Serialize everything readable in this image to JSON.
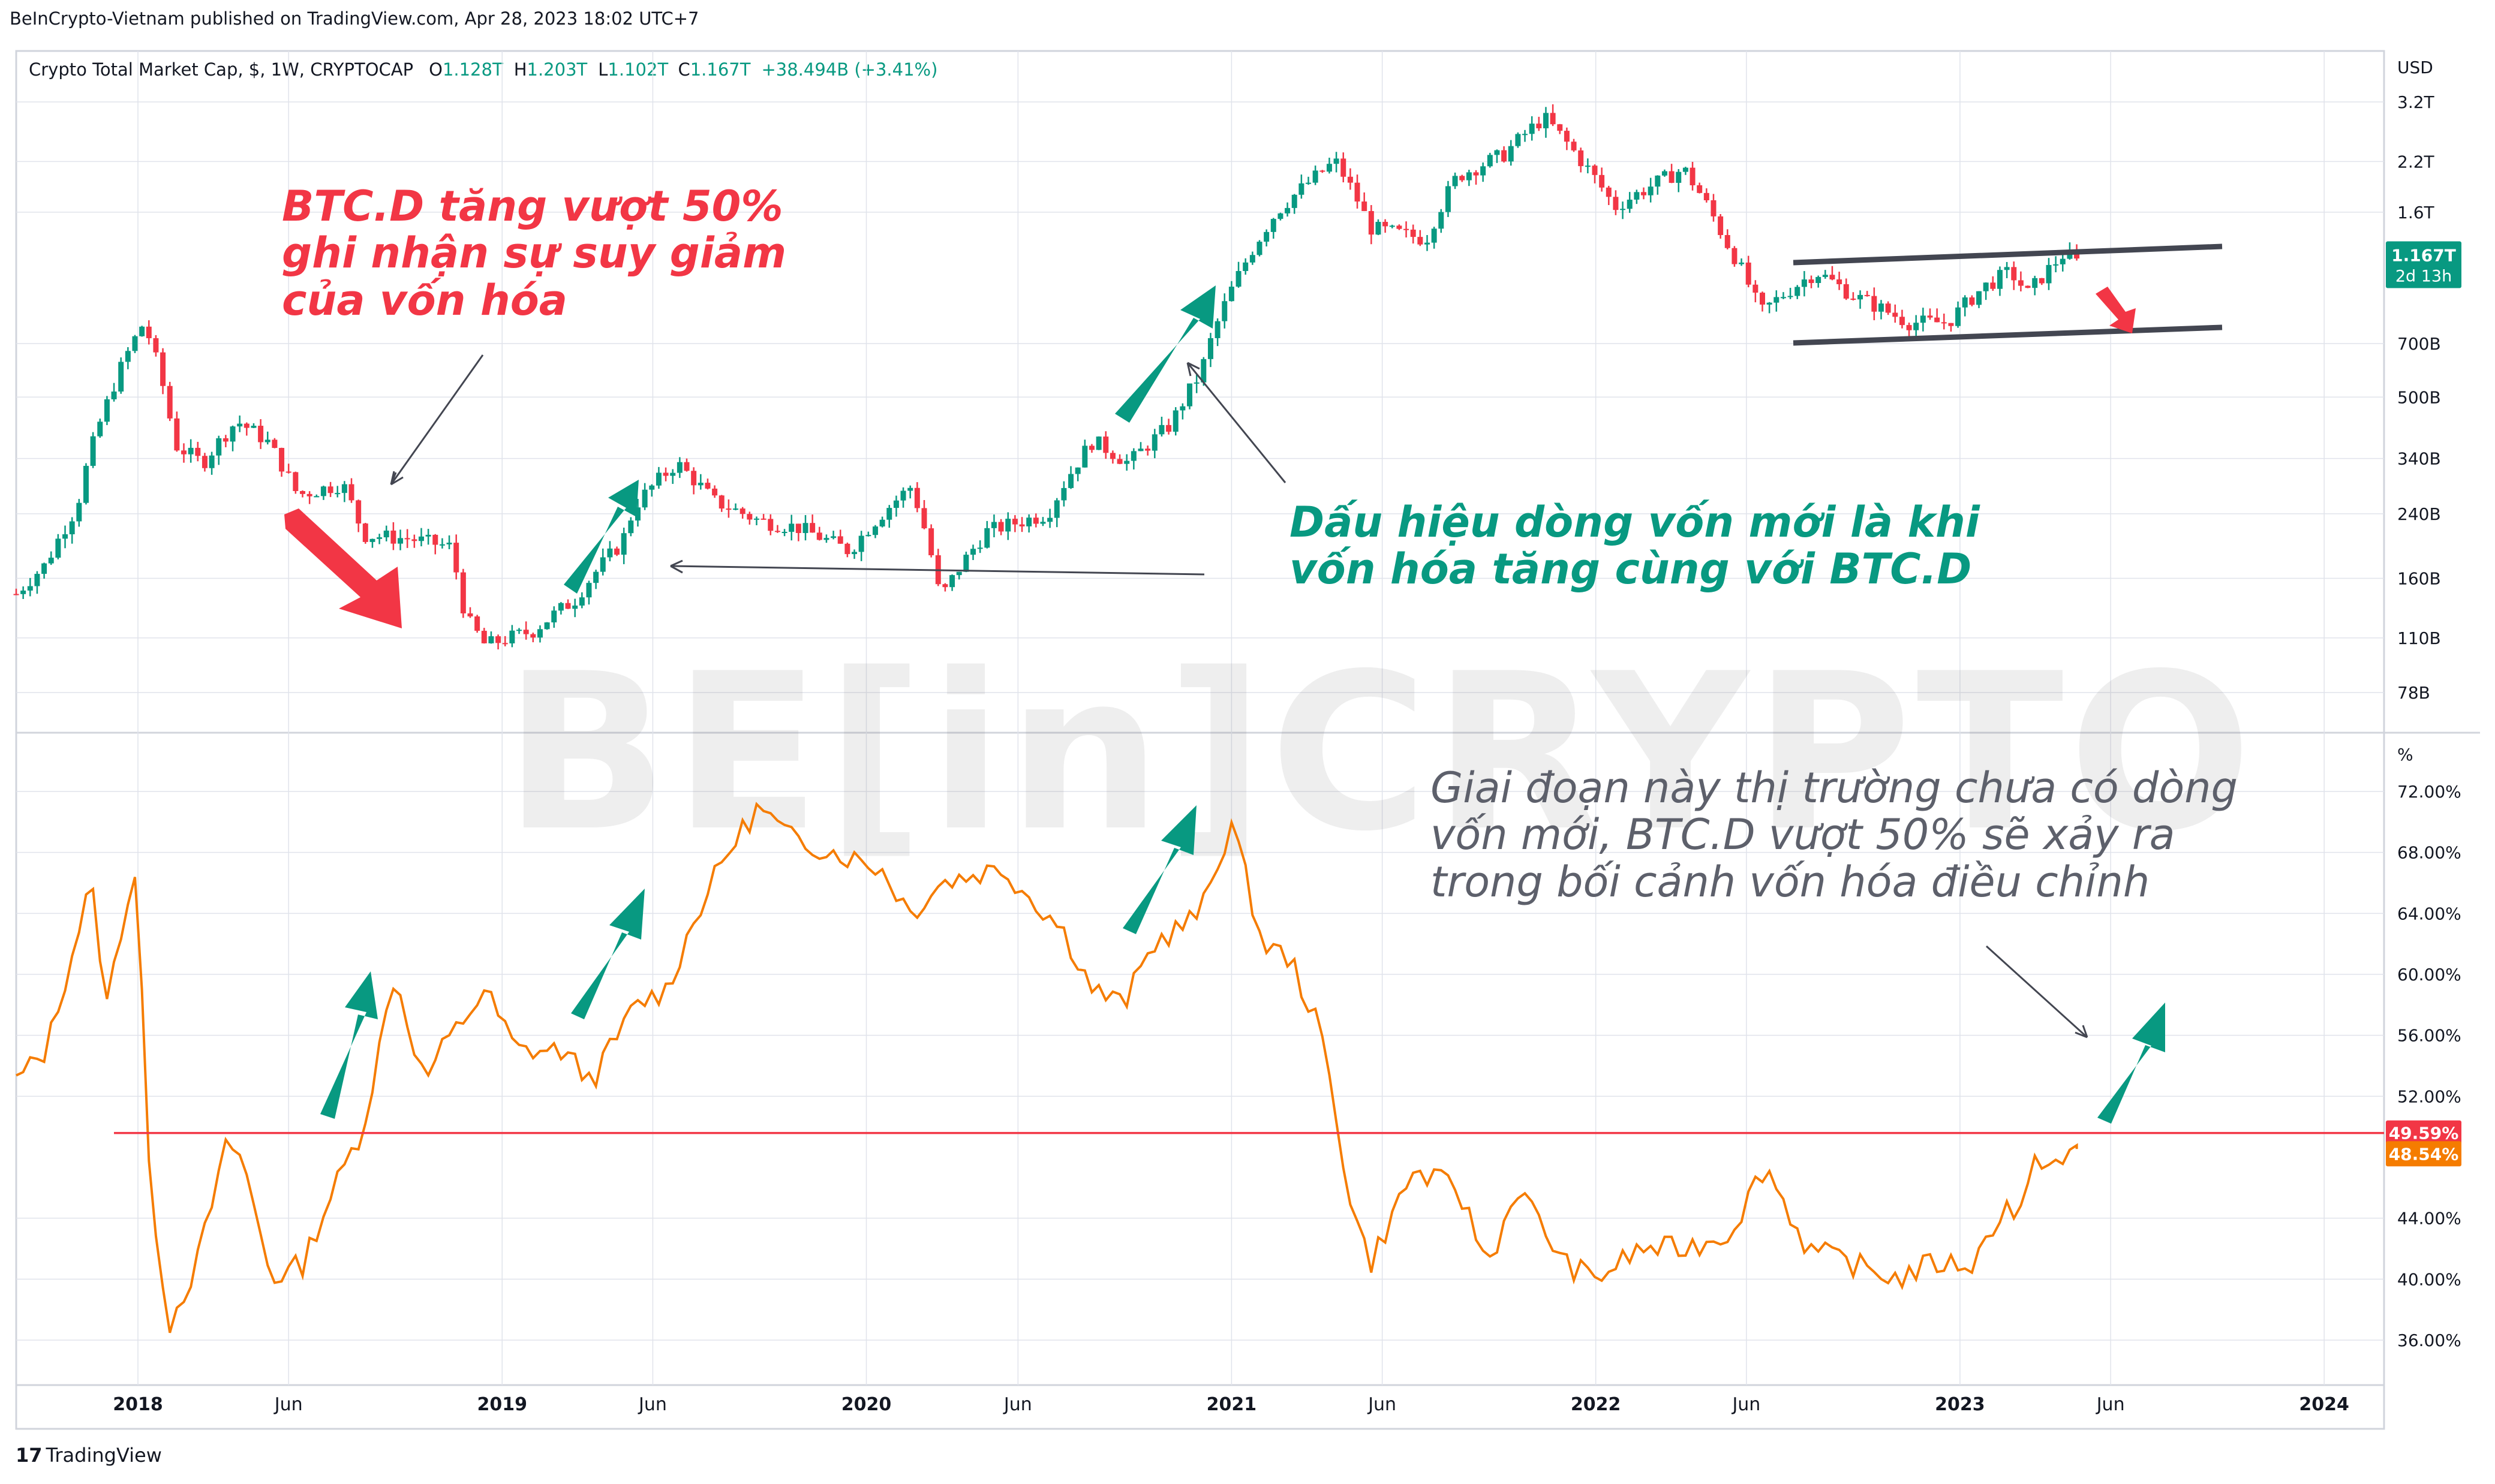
{
  "publisher": "BeInCrypto-Vietnam published on TradingView.com, Apr 28, 2023 18:02 UTC+7",
  "legend": {
    "symbol": "Crypto Total Market Cap, $, 1W, CRYPTOCAP",
    "open_label": "O",
    "open": "1.128T",
    "high_label": "H",
    "high": "1.203T",
    "low_label": "L",
    "low": "1.102T",
    "close_label": "C",
    "close": "1.167T",
    "change": "+38.494B (+3.41%)"
  },
  "annotations": {
    "red": "BTC.D tăng vượt 50% ghi nhận sự suy giảm của vốn hóa",
    "teal": "Dấu hiệu dòng vốn mới là khi vốn hóa tăng cùng với BTC.D",
    "gray": "Giai đoạn này thị trường chưa có dòng vốn mới, BTC.D vượt 50% sẽ xảy ra trong bối cảnh vốn hóa điều chỉnh"
  },
  "watermark": "BE[in]CRYPTO",
  "footer_brand": "TradingView",
  "colors": {
    "up": "#089981",
    "down": "#f23645",
    "btcd": "#f57c00",
    "level": "#f23645",
    "text": "#131722",
    "grid": "#e0e3eb",
    "gray_text": "#5d606b"
  },
  "chart_data": [
    {
      "type": "candlestick",
      "title": "Crypto Total Market Cap, $, 1W, CRYPTOCAP",
      "scale": "log",
      "unit": "USD",
      "y_ticks": [
        "3.2T",
        "2.2T",
        "1.6T",
        "700B",
        "500B",
        "340B",
        "240B",
        "160B",
        "110B",
        "78B"
      ],
      "y_tick_values": [
        3200,
        2200,
        1600,
        700,
        500,
        340,
        240,
        160,
        110,
        78
      ],
      "last_value_label": "1.167T",
      "countdown_label": "2d 13h",
      "series": [
        {
          "date": "2017-09-01",
          "value": 145
        },
        {
          "date": "2017-10-01",
          "value": 175
        },
        {
          "date": "2017-11-01",
          "value": 250
        },
        {
          "date": "2017-12-01",
          "value": 480
        },
        {
          "date": "2018-01-07",
          "value": 800
        },
        {
          "date": "2018-02-07",
          "value": 370
        },
        {
          "date": "2018-03-07",
          "value": 330
        },
        {
          "date": "2018-04-10",
          "value": 430
        },
        {
          "date": "2018-05-10",
          "value": 380
        },
        {
          "date": "2018-06-10",
          "value": 270
        },
        {
          "date": "2018-07-25",
          "value": 290
        },
        {
          "date": "2018-08-15",
          "value": 210
        },
        {
          "date": "2018-10-01",
          "value": 205
        },
        {
          "date": "2018-11-10",
          "value": 195
        },
        {
          "date": "2018-11-25",
          "value": 125
        },
        {
          "date": "2018-12-15",
          "value": 105
        },
        {
          "date": "2019-02-01",
          "value": 115
        },
        {
          "date": "2019-03-15",
          "value": 140
        },
        {
          "date": "2019-05-01",
          "value": 200
        },
        {
          "date": "2019-05-15",
          "value": 255
        },
        {
          "date": "2019-06-25",
          "value": 330
        },
        {
          "date": "2019-08-01",
          "value": 260
        },
        {
          "date": "2019-09-15",
          "value": 230
        },
        {
          "date": "2019-10-25",
          "value": 220
        },
        {
          "date": "2019-12-15",
          "value": 190
        },
        {
          "date": "2020-02-15",
          "value": 285
        },
        {
          "date": "2020-03-15",
          "value": 140
        },
        {
          "date": "2020-05-01",
          "value": 215
        },
        {
          "date": "2020-07-01",
          "value": 240
        },
        {
          "date": "2020-08-15",
          "value": 380
        },
        {
          "date": "2020-09-20",
          "value": 330
        },
        {
          "date": "2020-11-01",
          "value": 420
        },
        {
          "date": "2020-12-01",
          "value": 580
        },
        {
          "date": "2021-01-10",
          "value": 1100
        },
        {
          "date": "2021-02-15",
          "value": 1600
        },
        {
          "date": "2021-04-15",
          "value": 2200
        },
        {
          "date": "2021-05-20",
          "value": 1450
        },
        {
          "date": "2021-07-15",
          "value": 1350
        },
        {
          "date": "2021-08-15",
          "value": 2000
        },
        {
          "date": "2021-10-01",
          "value": 2300
        },
        {
          "date": "2021-11-10",
          "value": 2900
        },
        {
          "date": "2021-12-15",
          "value": 2250
        },
        {
          "date": "2022-01-20",
          "value": 1650
        },
        {
          "date": "2022-03-30",
          "value": 2100
        },
        {
          "date": "2022-05-10",
          "value": 1350
        },
        {
          "date": "2022-06-15",
          "value": 850
        },
        {
          "date": "2022-08-10",
          "value": 1100
        },
        {
          "date": "2022-09-15",
          "value": 950
        },
        {
          "date": "2022-11-10",
          "value": 800
        },
        {
          "date": "2022-12-20",
          "value": 800
        },
        {
          "date": "2023-01-25",
          "value": 1000
        },
        {
          "date": "2023-02-20",
          "value": 1100
        },
        {
          "date": "2023-03-10",
          "value": 960
        },
        {
          "date": "2023-04-15",
          "value": 1230
        },
        {
          "date": "2023-04-28",
          "value": 1167
        }
      ]
    },
    {
      "type": "line",
      "name": "BTC.D",
      "unit": "%",
      "y_ticks": [
        "72.00%",
        "68.00%",
        "64.00%",
        "60.00%",
        "56.00%",
        "52.00%",
        "44.00%",
        "40.00%",
        "36.00%"
      ],
      "y_tick_values": [
        72,
        68,
        64,
        60,
        56,
        52,
        44,
        40,
        36
      ],
      "ylim": [
        33.5,
        75
      ],
      "level_value": 49.59,
      "level_label": "49.59%",
      "last_value_label": "48.54%",
      "series": [
        {
          "date": "2017-09-01",
          "value": 53
        },
        {
          "date": "2017-10-01",
          "value": 55
        },
        {
          "date": "2017-11-15",
          "value": 66
        },
        {
          "date": "2017-12-01",
          "value": 58
        },
        {
          "date": "2017-12-15",
          "value": 63
        },
        {
          "date": "2018-01-01",
          "value": 67.5
        },
        {
          "date": "2018-01-10",
          "value": 48
        },
        {
          "date": "2018-02-01",
          "value": 37
        },
        {
          "date": "2018-03-01",
          "value": 41
        },
        {
          "date": "2018-04-01",
          "value": 49
        },
        {
          "date": "2018-04-15",
          "value": 48
        },
        {
          "date": "2018-05-15",
          "value": 40
        },
        {
          "date": "2018-06-15",
          "value": 41
        },
        {
          "date": "2018-07-10",
          "value": 45
        },
        {
          "date": "2018-08-15",
          "value": 50
        },
        {
          "date": "2018-09-15",
          "value": 60
        },
        {
          "date": "2018-10-15",
          "value": 53
        },
        {
          "date": "2018-11-01",
          "value": 55
        },
        {
          "date": "2018-12-15",
          "value": 59
        },
        {
          "date": "2019-01-15",
          "value": 55
        },
        {
          "date": "2019-03-01",
          "value": 55
        },
        {
          "date": "2019-04-01",
          "value": 53
        },
        {
          "date": "2019-05-15",
          "value": 58
        },
        {
          "date": "2019-06-15",
          "value": 59
        },
        {
          "date": "2019-07-15",
          "value": 64
        },
        {
          "date": "2019-08-15",
          "value": 68
        },
        {
          "date": "2019-09-15",
          "value": 71
        },
        {
          "date": "2019-10-15",
          "value": 69
        },
        {
          "date": "2019-12-01",
          "value": 68
        },
        {
          "date": "2020-01-15",
          "value": 67
        },
        {
          "date": "2020-02-15",
          "value": 64
        },
        {
          "date": "2020-03-15",
          "value": 66
        },
        {
          "date": "2020-05-15",
          "value": 67
        },
        {
          "date": "2020-07-15",
          "value": 63
        },
        {
          "date": "2020-08-15",
          "value": 59
        },
        {
          "date": "2020-09-15",
          "value": 58
        },
        {
          "date": "2020-10-15",
          "value": 62
        },
        {
          "date": "2020-12-01",
          "value": 64
        },
        {
          "date": "2021-01-01",
          "value": 70
        },
        {
          "date": "2021-02-01",
          "value": 62
        },
        {
          "date": "2021-03-01",
          "value": 61
        },
        {
          "date": "2021-04-01",
          "value": 56
        },
        {
          "date": "2021-05-01",
          "value": 45
        },
        {
          "date": "2021-05-20",
          "value": 41
        },
        {
          "date": "2021-07-01",
          "value": 47
        },
        {
          "date": "2021-08-15",
          "value": 46
        },
        {
          "date": "2021-09-15",
          "value": 41
        },
        {
          "date": "2021-10-15",
          "value": 46
        },
        {
          "date": "2021-12-01",
          "value": 41
        },
        {
          "date": "2022-01-01",
          "value": 40
        },
        {
          "date": "2022-02-15",
          "value": 42
        },
        {
          "date": "2022-04-01",
          "value": 42
        },
        {
          "date": "2022-05-15",
          "value": 43
        },
        {
          "date": "2022-06-20",
          "value": 47.5
        },
        {
          "date": "2022-08-01",
          "value": 42
        },
        {
          "date": "2022-09-15",
          "value": 41
        },
        {
          "date": "2022-11-01",
          "value": 40
        },
        {
          "date": "2022-12-01",
          "value": 41
        },
        {
          "date": "2023-01-15",
          "value": 41
        },
        {
          "date": "2023-02-15",
          "value": 45
        },
        {
          "date": "2023-03-01",
          "value": 44
        },
        {
          "date": "2023-03-20",
          "value": 48
        },
        {
          "date": "2023-04-15",
          "value": 47.5
        },
        {
          "date": "2023-04-28",
          "value": 48.54
        }
      ]
    }
  ],
  "x_axis_ticks": [
    {
      "label": "2018",
      "date": "2018-01-01",
      "bold": true
    },
    {
      "label": "Jun",
      "date": "2018-06-01",
      "bold": false
    },
    {
      "label": "2019",
      "date": "2019-01-01",
      "bold": true
    },
    {
      "label": "Jun",
      "date": "2019-06-01",
      "bold": false
    },
    {
      "label": "2020",
      "date": "2020-01-01",
      "bold": true
    },
    {
      "label": "Jun",
      "date": "2020-06-01",
      "bold": false
    },
    {
      "label": "2021",
      "date": "2021-01-01",
      "bold": true
    },
    {
      "label": "Jun",
      "date": "2021-06-01",
      "bold": false
    },
    {
      "label": "2022",
      "date": "2022-01-01",
      "bold": true
    },
    {
      "label": "Jun",
      "date": "2022-06-01",
      "bold": false
    },
    {
      "label": "2023",
      "date": "2023-01-01",
      "bold": true
    },
    {
      "label": "Jun",
      "date": "2023-06-01",
      "bold": false
    },
    {
      "label": "2024",
      "date": "2024-01-01",
      "bold": true
    }
  ]
}
